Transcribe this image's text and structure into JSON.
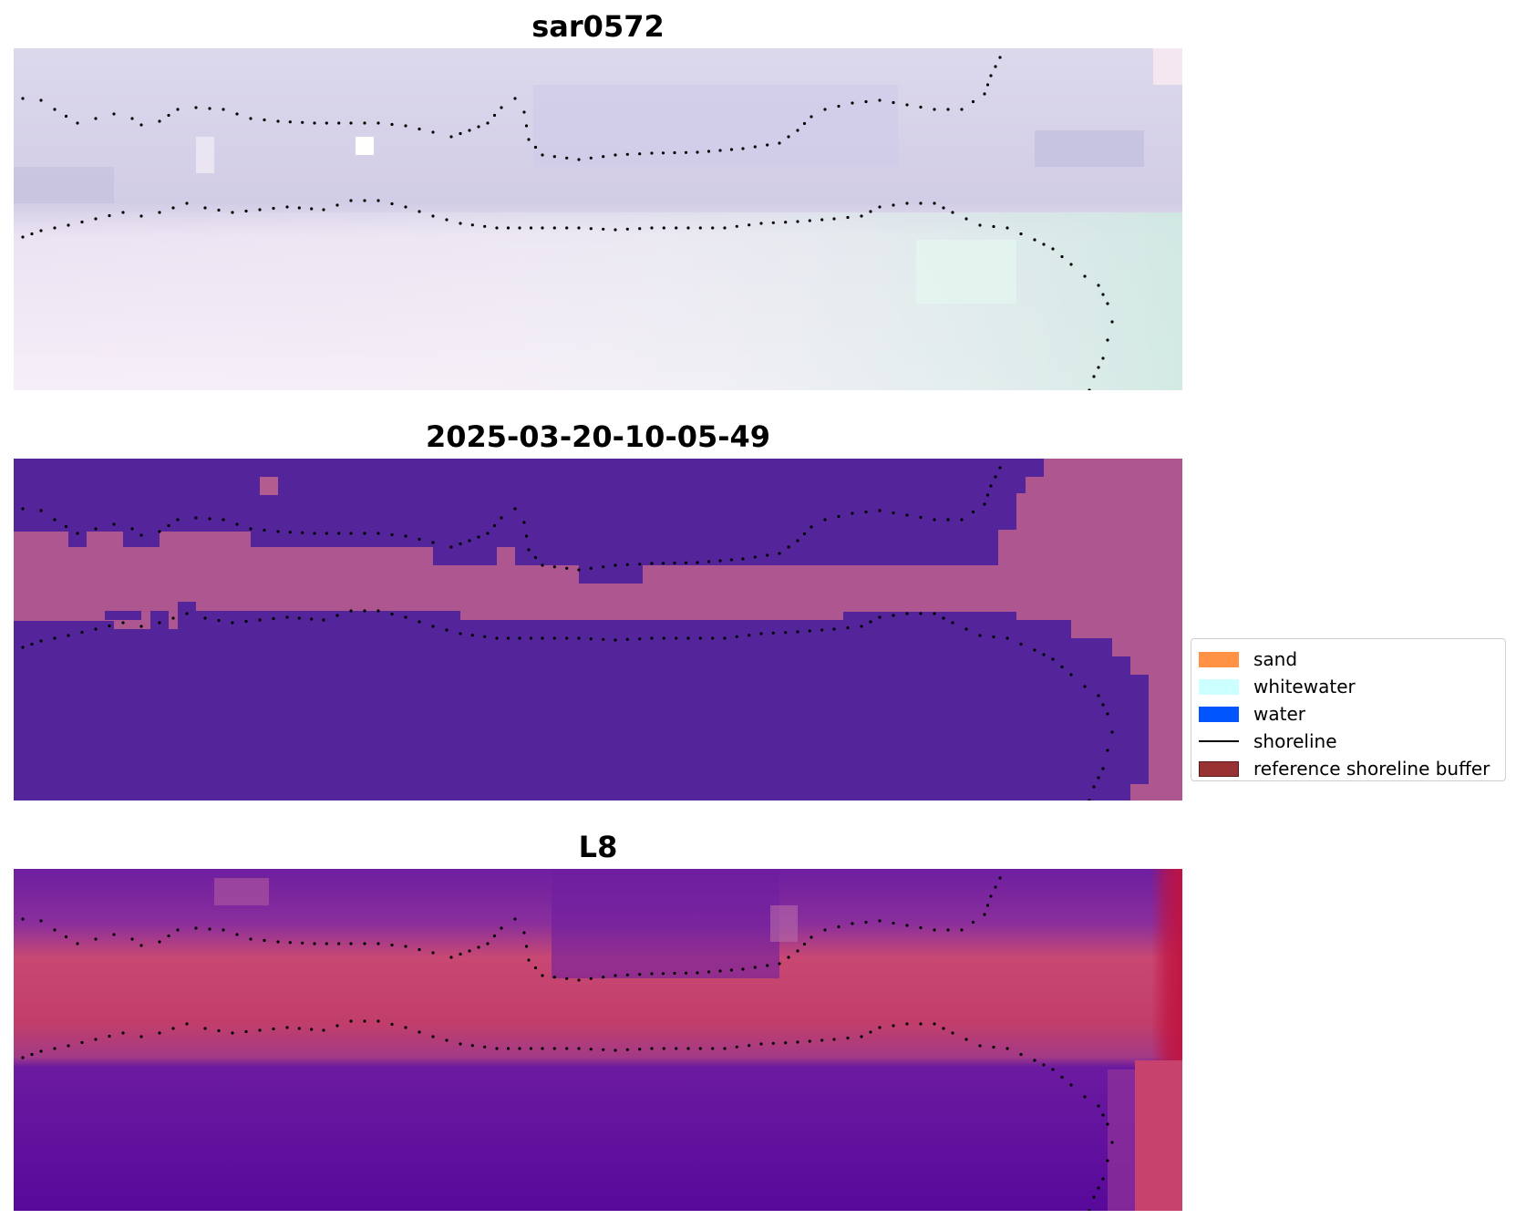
{
  "panels": [
    {
      "title": "sar0572",
      "image_kind": "rgb-composite",
      "colors": [
        "#dad6ea",
        "#cfcbe6",
        "#f4ecf7",
        "#e4f4ef",
        "#cde8e2"
      ]
    },
    {
      "title": "2025-03-20-10-05-49",
      "image_kind": "classification",
      "colors": [
        "#53249a",
        "#ad568f",
        "#b35c8f"
      ]
    },
    {
      "title": "L8",
      "image_kind": "index-map",
      "colors": [
        "#6a1a9c",
        "#c8426e",
        "#c0133f",
        "#5a0a9a"
      ]
    }
  ],
  "legend": {
    "items": [
      {
        "label": "sand",
        "kind": "patch",
        "color": "#ff9244"
      },
      {
        "label": "whitewater",
        "kind": "patch",
        "color": "#ccffff"
      },
      {
        "label": "water",
        "kind": "patch",
        "color": "#0055ff"
      },
      {
        "label": "shoreline",
        "kind": "line",
        "color": "#000000"
      },
      {
        "label": "reference shoreline buffer",
        "kind": "patch",
        "color": "#993333"
      }
    ]
  },
  "overlay": {
    "shoreline_marker": "black-dots"
  }
}
